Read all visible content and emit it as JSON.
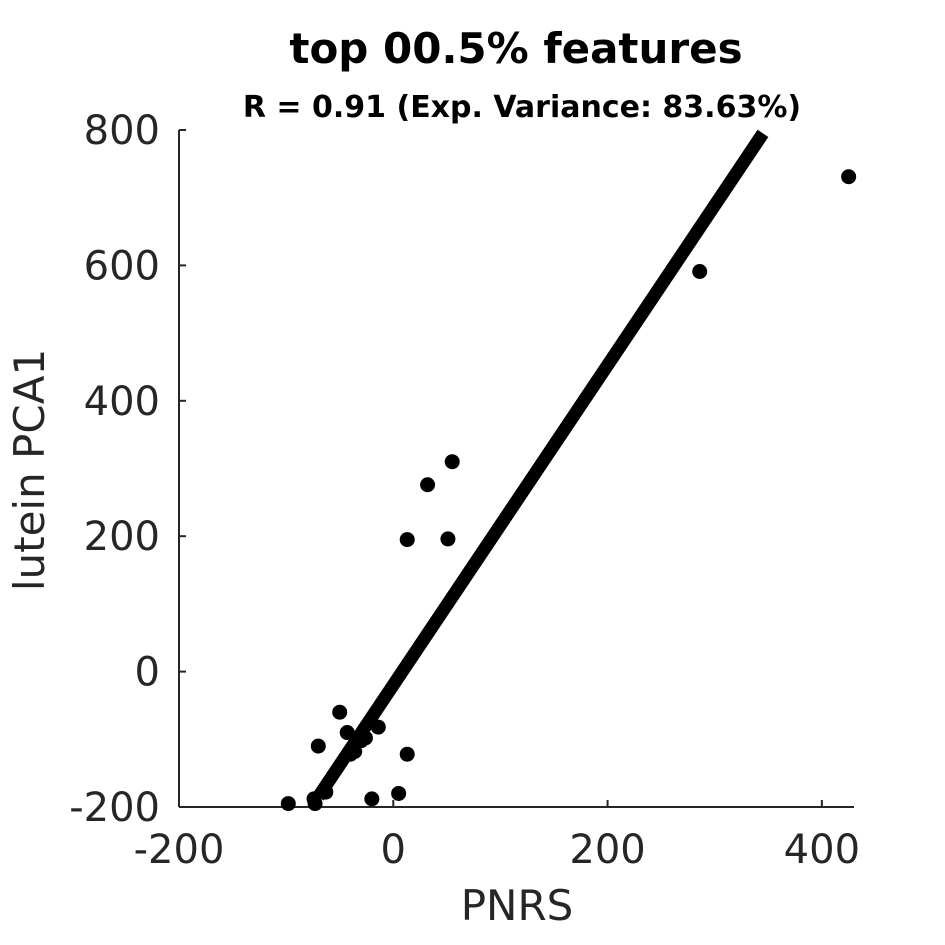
{
  "chart_data": {
    "type": "scatter",
    "title": "top 00.5% features",
    "subtitle": "R = 0.91 (Exp. Variance: 83.63%)",
    "xlabel": "PNRS",
    "ylabel": "lutein PCA1",
    "xlim": [
      -200,
      430
    ],
    "ylim": [
      -200,
      800
    ],
    "x_ticks": [
      -200,
      0,
      200,
      400
    ],
    "x_tick_labels": [
      "-200",
      "0",
      "200",
      "400"
    ],
    "y_ticks": [
      -200,
      0,
      200,
      400,
      600,
      800
    ],
    "y_tick_labels": [
      "-200",
      "0",
      "200",
      "400",
      "600",
      "800"
    ],
    "grid": false,
    "points": [
      {
        "x": -98,
        "y": -195
      },
      {
        "x": -74,
        "y": -188
      },
      {
        "x": -73,
        "y": -195
      },
      {
        "x": -63,
        "y": -178
      },
      {
        "x": -70,
        "y": -110
      },
      {
        "x": -50,
        "y": -60
      },
      {
        "x": -43,
        "y": -90
      },
      {
        "x": -40,
        "y": -122
      },
      {
        "x": -36,
        "y": -118
      },
      {
        "x": -30,
        "y": -102
      },
      {
        "x": -26,
        "y": -98
      },
      {
        "x": -20,
        "y": -188
      },
      {
        "x": -14,
        "y": -82
      },
      {
        "x": 5,
        "y": -180
      },
      {
        "x": 13,
        "y": -122
      },
      {
        "x": 13,
        "y": 195
      },
      {
        "x": 32,
        "y": 276
      },
      {
        "x": 51,
        "y": 196
      },
      {
        "x": 55,
        "y": 310
      },
      {
        "x": 286,
        "y": 591
      },
      {
        "x": 425,
        "y": 731
      }
    ],
    "fit_line": {
      "x": [
        -70,
        345
      ],
      "y": [
        -185,
        795
      ]
    },
    "colors": {
      "points": "#000000",
      "fit_line": "#000000",
      "axes": "#262626"
    }
  }
}
